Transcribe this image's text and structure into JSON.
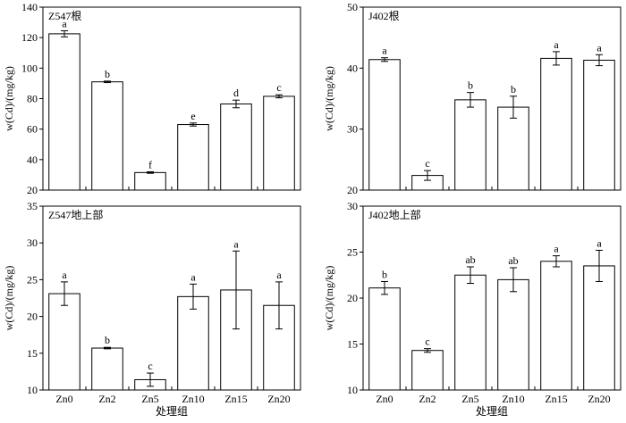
{
  "chart_data": [
    {
      "type": "bar",
      "panel_label": "Z547根",
      "categories": [
        "Zn0",
        "Zn2",
        "Zn5",
        "Zn10",
        "Zn15",
        "Zn20"
      ],
      "values": [
        122.5,
        91,
        31.5,
        63,
        76.5,
        81.5
      ],
      "errors": [
        2,
        0.5,
        0.5,
        1,
        2.5,
        1
      ],
      "letters": [
        "a",
        "b",
        "f",
        "e",
        "d",
        "c"
      ],
      "ylabel": "w(Cd)/(mg/kg)",
      "ylim": [
        20,
        140
      ],
      "yticks": [
        20,
        40,
        60,
        80,
        100,
        120,
        140
      ],
      "xlabel": ""
    },
    {
      "type": "bar",
      "panel_label": "J402根",
      "categories": [
        "Zn0",
        "Zn2",
        "Zn5",
        "Zn10",
        "Zn15",
        "Zn20"
      ],
      "values": [
        41.4,
        22.4,
        34.8,
        33.6,
        41.6,
        41.3
      ],
      "errors": [
        0.3,
        0.8,
        1.2,
        1.8,
        1.1,
        0.9
      ],
      "letters": [
        "a",
        "c",
        "b",
        "b",
        "a",
        "a"
      ],
      "ylabel": "w(Cd)/(mg/kg)",
      "ylim": [
        20,
        50
      ],
      "yticks": [
        20,
        30,
        40,
        50
      ],
      "xlabel": ""
    },
    {
      "type": "bar",
      "panel_label": "Z547地上部",
      "categories": [
        "Zn0",
        "Zn2",
        "Zn5",
        "Zn10",
        "Zn15",
        "Zn20"
      ],
      "values": [
        23.1,
        15.7,
        11.4,
        22.7,
        23.6,
        21.5
      ],
      "errors": [
        1.6,
        0.1,
        0.9,
        1.7,
        5.3,
        3.2
      ],
      "letters": [
        "a",
        "b",
        "c",
        "a",
        "a",
        "a"
      ],
      "ylabel": "w(Cd)/(mg/kg)",
      "ylim": [
        10,
        35
      ],
      "yticks": [
        10,
        15,
        20,
        25,
        30,
        35
      ],
      "xlabel": "处理组"
    },
    {
      "type": "bar",
      "panel_label": "J402地上部",
      "categories": [
        "Zn0",
        "Zn2",
        "Zn5",
        "Zn10",
        "Zn15",
        "Zn20"
      ],
      "values": [
        21.1,
        14.3,
        22.5,
        22.0,
        24.0,
        23.5
      ],
      "errors": [
        0.7,
        0.2,
        0.9,
        1.3,
        0.6,
        1.7
      ],
      "letters": [
        "b",
        "c",
        "ab",
        "ab",
        "a",
        "a"
      ],
      "ylabel": "w(Cd)/(mg/kg)",
      "ylim": [
        10,
        30
      ],
      "yticks": [
        10,
        15,
        20,
        25,
        30
      ],
      "xlabel": "处理组"
    }
  ]
}
